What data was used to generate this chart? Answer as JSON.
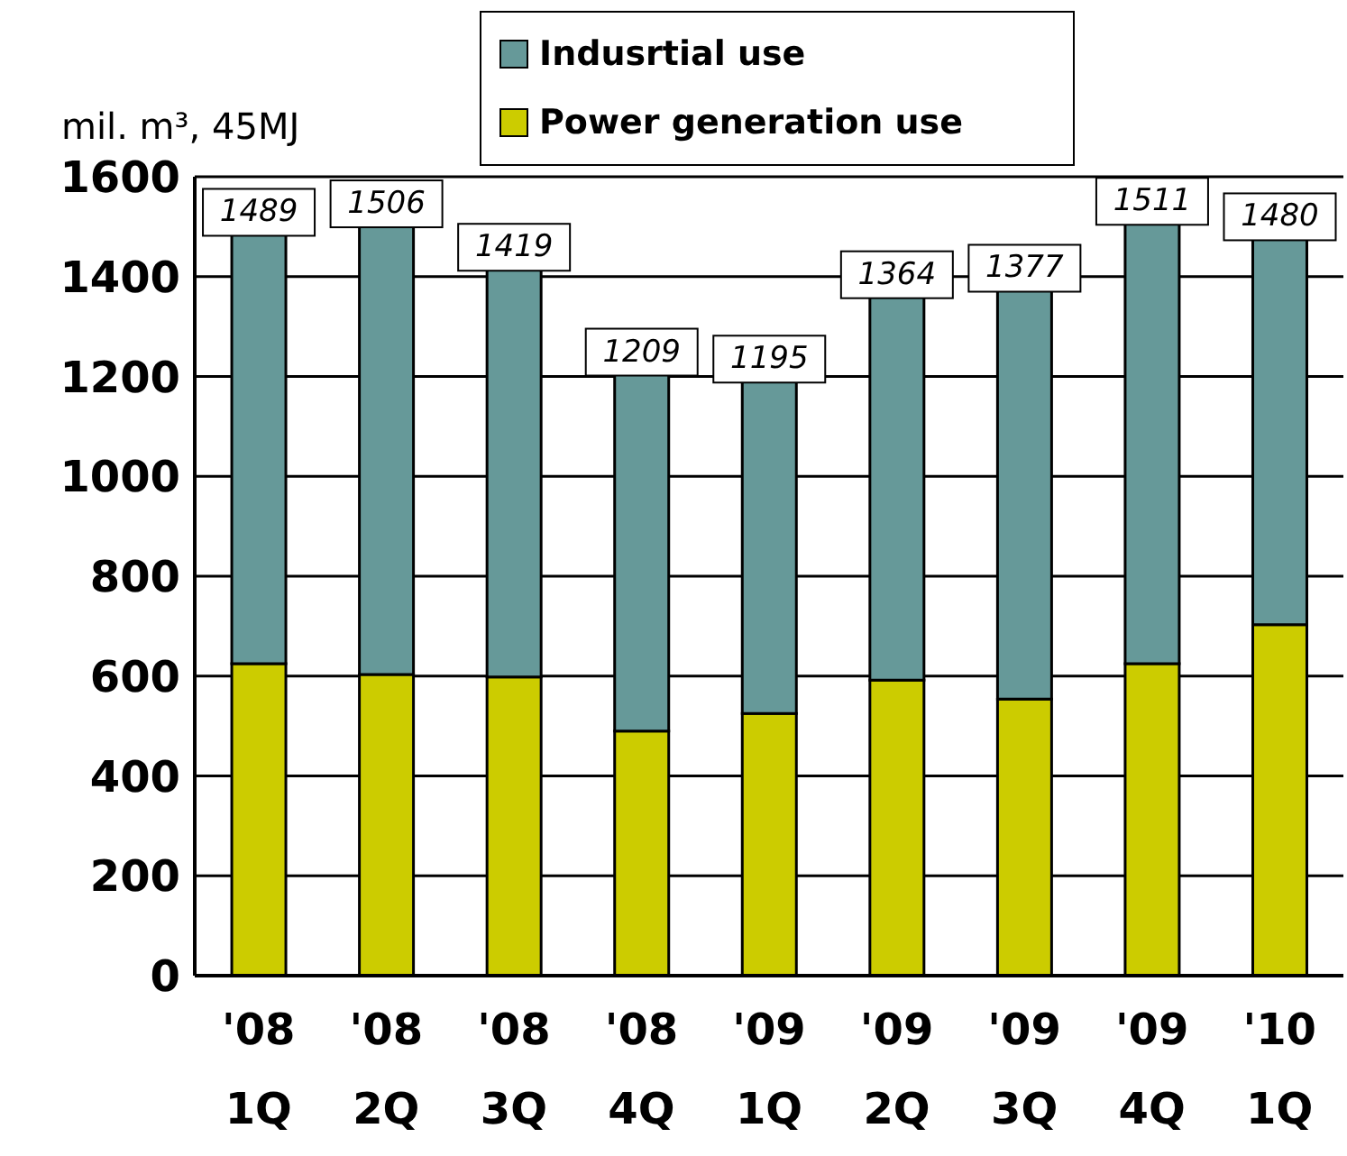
{
  "chart_data": {
    "type": "bar",
    "stacked": true,
    "ylabel": "mil. m³, 45MJ",
    "categories": [
      "'08\n1Q",
      "'08\n2Q",
      "'08\n3Q",
      "'08\n4Q",
      "'09\n1Q",
      "'09\n2Q",
      "'09\n3Q",
      "'09\n4Q",
      "'10\n1Q"
    ],
    "series": [
      {
        "name": "Power generation use",
        "color": "#cccc00",
        "values": [
          625,
          603,
          598,
          490,
          525,
          592,
          554,
          625,
          703
        ]
      },
      {
        "name": "Indusrtial use",
        "color": "#669999",
        "values": [
          864,
          903,
          821,
          719,
          670,
          772,
          823,
          886,
          777
        ]
      }
    ],
    "totals": [
      "1489",
      "1506",
      "1419",
      "1209",
      "1195",
      "1364",
      "1377",
      "1511",
      "1480"
    ],
    "ylim": [
      0,
      1600
    ],
    "yticks": [
      0,
      200,
      400,
      600,
      800,
      1000,
      1200,
      1400,
      1600
    ],
    "grid": "y",
    "legend": "top"
  }
}
